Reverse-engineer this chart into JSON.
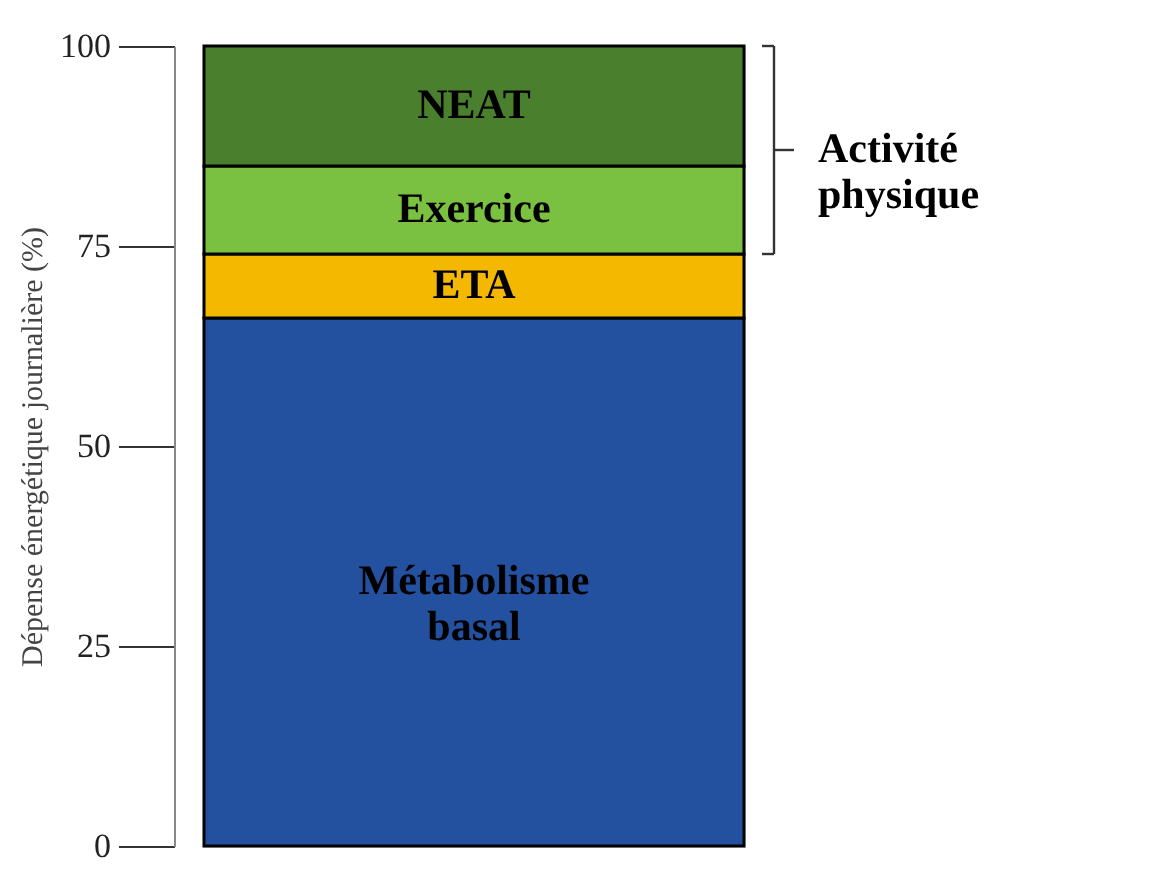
{
  "chart_data": {
    "type": "bar",
    "stacked": true,
    "categories": [
      null
    ],
    "ylabel": "Dépense énergétique journalière (%)",
    "series": [
      {
        "name": "Métabolisme basal",
        "color": "#2450a0",
        "values": [
          66
        ]
      },
      {
        "name": "ETA",
        "color": "#f5b800",
        "values": [
          8
        ]
      },
      {
        "name": "Exercice",
        "color": "#7ac142",
        "values": [
          11
        ]
      },
      {
        "name": "NEAT",
        "color": "#4a7f2e",
        "values": [
          15
        ]
      }
    ],
    "ylim": [
      0,
      100
    ],
    "yticks": [
      0,
      25,
      50,
      75,
      100
    ],
    "annotations": [
      "Activité physique"
    ]
  }
}
